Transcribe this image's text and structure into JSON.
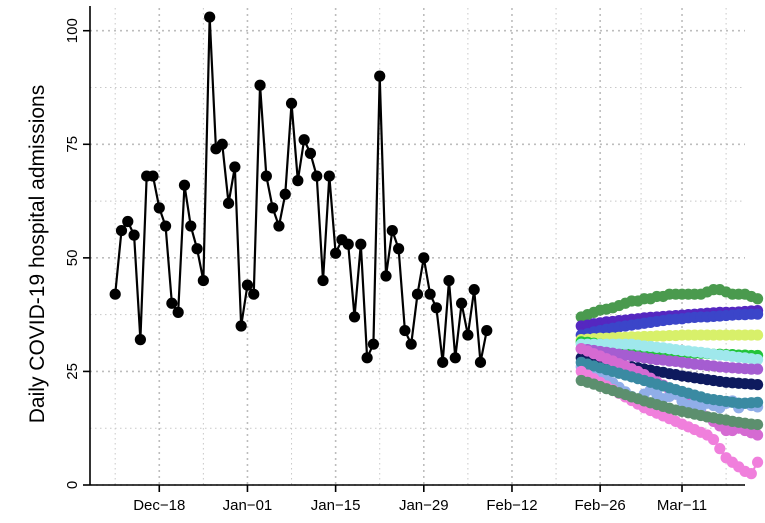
{
  "chart_data": {
    "type": "line",
    "title": "",
    "xlabel": "",
    "ylabel": "Daily COVID-19 hospital admissions",
    "ylim": [
      0,
      105
    ],
    "xlim": [
      "2020-12-07",
      "2021-03-21"
    ],
    "x_ticks": [
      "2020-12-18",
      "2021-01-01",
      "2021-01-15",
      "2021-01-29",
      "2021-02-12",
      "2021-02-26",
      "2021-03-11"
    ],
    "x_tick_labels": [
      "Dec−18",
      "Jan−01",
      "Jan−15",
      "Jan−29",
      "Feb−12",
      "Feb−26",
      "Mar−11"
    ],
    "y_ticks": [
      0,
      25,
      50,
      75,
      100
    ],
    "y_tick_labels": [
      "0",
      "25",
      "50",
      "75",
      "100"
    ],
    "grid": true,
    "observed": {
      "color": "#000000",
      "start_date": "2020-12-11",
      "values": [
        42,
        56,
        58,
        55,
        32,
        68,
        68,
        61,
        57,
        40,
        38,
        66,
        57,
        52,
        45,
        103,
        74,
        75,
        62,
        70,
        35,
        44,
        42,
        88,
        68,
        61,
        57,
        64,
        84,
        67,
        76,
        73,
        68,
        45,
        68,
        51,
        54,
        53,
        37,
        53,
        28,
        31,
        90,
        46,
        56,
        52,
        34,
        31,
        42,
        50,
        42,
        39,
        27,
        45,
        28,
        40,
        33,
        43,
        27,
        34
      ]
    },
    "projections": {
      "start_date": "2021-02-23",
      "series": [
        {
          "color": "#4a9a4e",
          "values": [
            37,
            37.5,
            38,
            38.5,
            38.7,
            39,
            39.5,
            40,
            40.5,
            40.5,
            41,
            41,
            41.5,
            41.5,
            42,
            42,
            42,
            42,
            42,
            42,
            42.5,
            43,
            43,
            42.5,
            42,
            42,
            42,
            41.5,
            41
          ]
        },
        {
          "color": "#5527c0",
          "values": [
            35,
            35.2,
            35.5,
            35.7,
            35.9,
            36,
            36.2,
            36.3,
            36.5,
            36.6,
            36.8,
            36.9,
            37,
            37.1,
            37.2,
            37.3,
            37.4,
            37.5,
            37.6,
            37.7,
            37.8,
            37.9,
            38,
            38,
            38,
            38.1,
            38.2,
            38.3,
            38.4
          ]
        },
        {
          "color": "#3b45c9",
          "values": [
            33,
            33.3,
            33.7,
            34,
            34.3,
            34.5,
            34.8,
            35,
            35.2,
            35.4,
            35.6,
            35.8,
            36,
            36.2,
            36.4,
            36.5,
            36.6,
            36.8,
            36.9,
            37,
            37,
            37.1,
            37.2,
            37.3,
            37.4,
            37.5,
            37.5,
            37.6,
            37.6
          ]
        },
        {
          "color": "#d8f06a",
          "values": [
            32,
            32.1,
            32.2,
            32.3,
            32.3,
            32.4,
            32.5,
            32.5,
            32.6,
            32.6,
            32.7,
            32.7,
            32.8,
            32.8,
            32.9,
            32.9,
            33,
            33,
            33,
            33,
            33,
            33,
            33,
            33,
            33,
            33,
            33,
            33,
            33
          ]
        },
        {
          "color": "#22c43a",
          "values": [
            31.5,
            31.4,
            31.2,
            31,
            30.9,
            30.7,
            30.5,
            30.4,
            30.2,
            30,
            29.9,
            29.8,
            29.6,
            29.5,
            29.4,
            29.3,
            29.2,
            29.1,
            29,
            29,
            28.9,
            28.8,
            28.8,
            28.7,
            28.7,
            28.6,
            28.6,
            28.5,
            28.5
          ]
        },
        {
          "color": "#9fe8ec",
          "values": [
            31,
            31,
            31,
            31,
            31,
            31,
            31,
            31,
            31,
            30.8,
            30.6,
            30.5,
            30.3,
            30.2,
            30,
            29.8,
            29.6,
            29.5,
            29.3,
            29.2,
            29,
            28.8,
            28.6,
            28.5,
            28.3,
            28.1,
            28,
            27.8,
            27.6
          ]
        },
        {
          "color": "#a55dd1",
          "values": [
            30,
            29.8,
            29.6,
            29.4,
            29.2,
            29,
            28.8,
            28.6,
            28.4,
            28.2,
            28,
            27.8,
            27.6,
            27.5,
            27.3,
            27.2,
            27,
            26.8,
            26.6,
            26.5,
            26.3,
            26.2,
            26,
            25.9,
            25.8,
            25.7,
            25.6,
            25.5,
            25.5
          ]
        },
        {
          "color": "#0e1a5e",
          "values": [
            28,
            27.8,
            27.5,
            27.2,
            27,
            26.7,
            26.5,
            26.2,
            26,
            25.8,
            25.5,
            25.3,
            25,
            24.8,
            24.5,
            24.3,
            24,
            23.8,
            23.6,
            23.4,
            23.2,
            23,
            22.8,
            22.6,
            22.5,
            22.4,
            22.3,
            22.2,
            22.1
          ]
        },
        {
          "color": "#d56ad2",
          "values": [
            30,
            29.5,
            28.9,
            28.4,
            27.8,
            27.3,
            26.7,
            26.2,
            25.6,
            25,
            24.3,
            23.5,
            22.7,
            22,
            21,
            20,
            19,
            18,
            17,
            16,
            15,
            14,
            13,
            12,
            12,
            12.5,
            12,
            11.5,
            11
          ]
        },
        {
          "color": "#90aee8",
          "values": [
            26,
            25.5,
            25,
            24.5,
            23.5,
            22.5,
            21.5,
            20.5,
            19.5,
            18.5,
            20,
            21,
            20,
            19,
            19.5,
            20,
            18.5,
            17.5,
            18,
            17,
            18,
            17.5,
            17,
            18,
            18.5,
            17,
            18,
            17.5,
            17.2
          ]
        },
        {
          "color": "#3a8aa2",
          "values": [
            27,
            26.6,
            26.2,
            25.8,
            25.4,
            25,
            24.6,
            24.2,
            23.8,
            23.4,
            23,
            22.6,
            22.2,
            21.8,
            21.4,
            21,
            20.6,
            20.2,
            19.8,
            19.4,
            19,
            18.8,
            18.6,
            18.4,
            18.2,
            18,
            18,
            18.1,
            18.2
          ]
        },
        {
          "color": "#f07fdc",
          "values": [
            25,
            24.2,
            23.4,
            22.6,
            21.8,
            21,
            20.2,
            19.4,
            18.6,
            17.8,
            17,
            16.4,
            15.8,
            15.2,
            14.6,
            14,
            13.4,
            12.8,
            12.2,
            11.6,
            11,
            10,
            8,
            6,
            5,
            4,
            3,
            2.5,
            5
          ]
        },
        {
          "color": "#5c8f6e",
          "values": [
            23,
            22.6,
            22.2,
            21.7,
            21.2,
            20.8,
            20.3,
            19.9,
            19.4,
            19,
            18.5,
            18.1,
            17.7,
            17.3,
            16.9,
            16.5,
            16.2,
            15.9,
            15.6,
            15.3,
            15,
            14.8,
            14.5,
            14.3,
            14,
            13.8,
            13.6,
            13.4,
            13.3
          ]
        }
      ]
    }
  }
}
